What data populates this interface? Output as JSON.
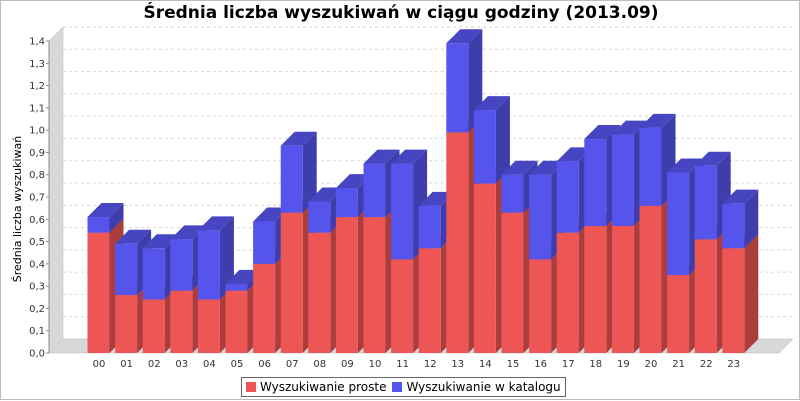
{
  "chart_data": {
    "type": "bar",
    "stacked": true,
    "three_d": true,
    "title": "Średnia liczba wyszukiwań w ciągu godziny (2013.09)",
    "xlabel": "",
    "ylabel": "Średnia liczba wyszukiwań",
    "ylim": [
      0,
      1.4
    ],
    "yticks": [
      "0,0",
      "0,1",
      "0,2",
      "0,3",
      "0,4",
      "0,5",
      "0,6",
      "0,7",
      "0,8",
      "0,9",
      "1,0",
      "1,1",
      "1,2",
      "1,3",
      "1,4"
    ],
    "grid": true,
    "legend_position": "bottom",
    "categories": [
      "00",
      "01",
      "02",
      "03",
      "04",
      "05",
      "06",
      "07",
      "08",
      "09",
      "10",
      "11",
      "12",
      "13",
      "14",
      "15",
      "16",
      "17",
      "18",
      "19",
      "20",
      "21",
      "22",
      "23"
    ],
    "series": [
      {
        "name": "Wyszukiwanie proste",
        "color": "#ee5555",
        "values": [
          0.54,
          0.26,
          0.24,
          0.28,
          0.24,
          0.28,
          0.4,
          0.63,
          0.54,
          0.61,
          0.61,
          0.42,
          0.47,
          0.99,
          0.76,
          0.63,
          0.42,
          0.54,
          0.57,
          0.57,
          0.66,
          0.35,
          0.51,
          0.47
        ]
      },
      {
        "name": "Wyszukiwanie w katalogu",
        "color": "#5555ee",
        "values": [
          0.07,
          0.23,
          0.23,
          0.23,
          0.31,
          0.03,
          0.19,
          0.3,
          0.14,
          0.13,
          0.24,
          0.43,
          0.19,
          0.4,
          0.33,
          0.17,
          0.38,
          0.32,
          0.39,
          0.41,
          0.35,
          0.46,
          0.33,
          0.2
        ]
      }
    ]
  }
}
